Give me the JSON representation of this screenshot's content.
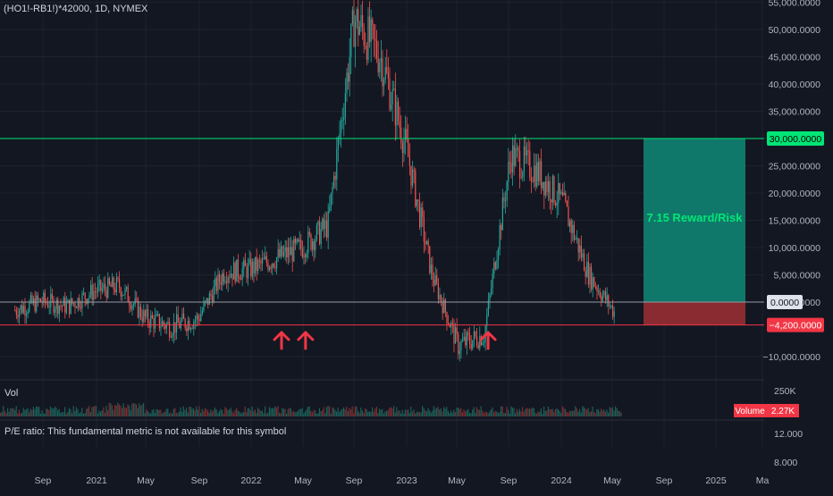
{
  "header": {
    "symbol": "(HO1!-RB1!)*42000, 1D, NYMEX"
  },
  "volume_panel": {
    "label": "Vol",
    "scale_label": "250K",
    "badge_label": "Volume",
    "badge_value": "2.27K"
  },
  "pe_panel": {
    "label": "P/E ratio: This fundamental metric is not available for this symbol",
    "ticks": [
      "12.000",
      "8.000"
    ]
  },
  "colors": {
    "background": "#131722",
    "up": "#26a69a",
    "down": "#ef5350",
    "target_line": "#00e676",
    "stop_line": "#f23645",
    "reward_zone": "#10786a",
    "risk_zone": "#8a2b31",
    "arrow": "#f23645",
    "axis_text": "#b2b5be",
    "grid": "#1e222d"
  },
  "chart_data": {
    "type": "candlestick",
    "title": "(HO1!-RB1!)*42000, 1D, NYMEX",
    "x": [
      "2020-07-01",
      "2020-09-01",
      "2020-11-01",
      "2021-01-01",
      "2021-03-01",
      "2021-05-01",
      "2021-07-01",
      "2021-09-01",
      "2021-11-01",
      "2022-01-01",
      "2022-03-01",
      "2022-05-01",
      "2022-07-01",
      "2022-09-01",
      "2022-11-01",
      "2023-01-01",
      "2023-03-01",
      "2023-05-01",
      "2023-07-01",
      "2023-09-01",
      "2023-11-01",
      "2024-01-01",
      "2024-03-01",
      "2024-05-01"
    ],
    "y": [
      -1500,
      200,
      -800,
      2000,
      3000,
      -3000,
      -4500,
      -3000,
      5500,
      6000,
      8000,
      10000,
      14000,
      52000,
      45000,
      28000,
      5000,
      -8000,
      -6000,
      27000,
      24000,
      18000,
      5000,
      -2000
    ],
    "x_ticks": [
      "Sep",
      "2021",
      "May",
      "Sep",
      "2022",
      "May",
      "Sep",
      "2023",
      "May",
      "Sep",
      "2024",
      "May",
      "Sep",
      "2025",
      "Ma"
    ],
    "y_ticks": [
      "55,000.0000",
      "50,000.0000",
      "45,000.0000",
      "40,000.0000",
      "35,000.0000",
      "30,000.0000",
      "25,000.0000",
      "20,000.0000",
      "15,000.0000",
      "10,000.0000",
      "5,000.0000",
      "0.0000",
      "−10,000.0000"
    ],
    "ylim": [
      -12500,
      55000
    ],
    "target_level": 30000,
    "target_label": "30,000.0000",
    "entry_level": 0,
    "entry_label": "0.0000",
    "stop_level": -4200,
    "stop_label": "−4,200.0000",
    "reward_risk_text": "7.15 Reward/Risk",
    "arrow_markers": [
      "2022-03-15",
      "2022-05-10",
      "2023-07-10"
    ]
  }
}
